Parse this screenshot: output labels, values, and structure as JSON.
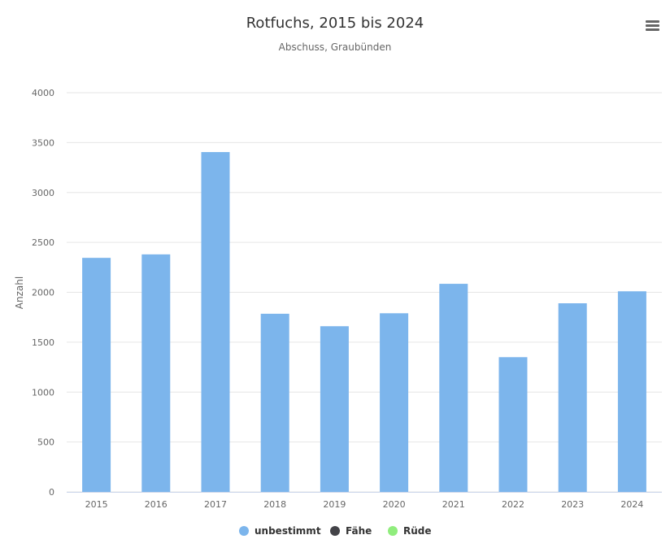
{
  "chart_data": {
    "type": "bar",
    "title": "Rotfuchs, 2015 bis 2024",
    "subtitle": "Abschuss, Graubünden",
    "ylabel": "Anzahl",
    "xlabel": "",
    "categories": [
      "2015",
      "2016",
      "2017",
      "2018",
      "2019",
      "2020",
      "2021",
      "2022",
      "2023",
      "2024"
    ],
    "ylim": [
      0,
      4000
    ],
    "yticks": [
      0,
      500,
      1000,
      1500,
      2000,
      2500,
      3000,
      3500,
      4000
    ],
    "grid": true,
    "legend_position": "bottom-center",
    "series": [
      {
        "name": "unbestimmt",
        "color": "#7cb5ec",
        "values": [
          2345,
          2380,
          3405,
          1785,
          1660,
          1790,
          2085,
          1350,
          1890,
          2010
        ]
      },
      {
        "name": "Fähe",
        "color": "#434348",
        "values": [
          0,
          0,
          0,
          0,
          0,
          0,
          0,
          0,
          0,
          0
        ]
      },
      {
        "name": "Rüde",
        "color": "#90ed7d",
        "values": [
          0,
          0,
          0,
          0,
          0,
          0,
          0,
          0,
          0,
          0
        ]
      }
    ]
  },
  "menu": {
    "icon": "hamburger-menu-icon"
  }
}
